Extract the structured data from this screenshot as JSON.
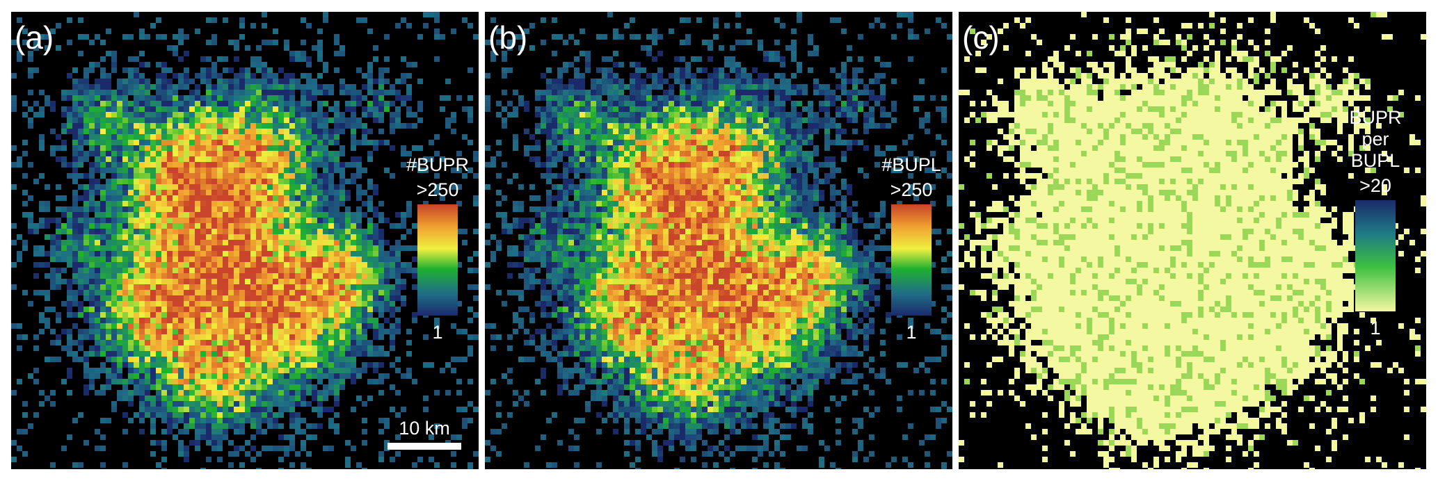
{
  "panels": [
    {
      "label": "(a)",
      "legend": {
        "title": [
          "#BUPR"
        ],
        "max": ">250",
        "min": "1"
      },
      "scale_bar": "10 km"
    },
    {
      "label": "(b)",
      "legend": {
        "title": [
          "#BUPL"
        ],
        "max": ">250",
        "min": "1"
      }
    },
    {
      "label": "(c)",
      "legend": {
        "title": [
          "BUPR",
          "per",
          "BUPL"
        ],
        "max": ">20",
        "min": "1"
      }
    }
  ]
}
